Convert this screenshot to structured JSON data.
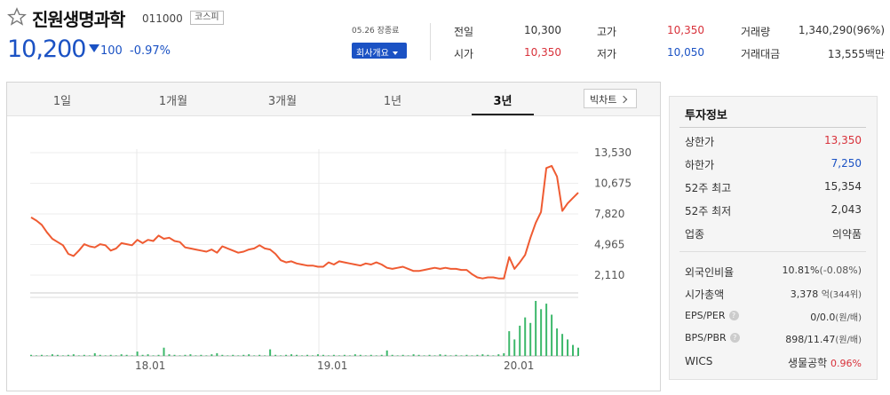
{
  "stock": {
    "name": "진원생명과학",
    "code": "011000",
    "market": "코스피",
    "price": "10,200",
    "change": "100",
    "change_pct": "-0.97%",
    "date_text": "05.26 장종료",
    "company_btn": "회사개요"
  },
  "quote": {
    "prev_close_label": "전일",
    "prev_close": "10,300",
    "high_label": "고가",
    "high": "10,350",
    "volume_label": "거래량",
    "volume": "1,340,290(96%)",
    "open_label": "시가",
    "open": "10,350",
    "low_label": "저가",
    "low": "10,050",
    "amount_label": "거래대금",
    "amount": "13,555백만"
  },
  "tabs": [
    "1일",
    "1개월",
    "3개월",
    "1년",
    "3년"
  ],
  "active_tab": "3년",
  "big_chart_btn": "빅차트",
  "chart_data": {
    "type": "line",
    "period": "3년",
    "y_ticks": [
      "13,530",
      "10,675",
      "7,820",
      "4,965",
      "2,110"
    ],
    "x_ticks": [
      "18.01",
      "19.01",
      "20.01"
    ],
    "ylim": [
      2110,
      13530
    ],
    "grid": true,
    "price_series": [
      7500,
      7200,
      6800,
      6100,
      5500,
      5200,
      4900,
      4100,
      3900,
      4400,
      5000,
      4800,
      4700,
      5000,
      4900,
      4400,
      4600,
      5100,
      5000,
      4900,
      5400,
      5100,
      5400,
      5300,
      5800,
      5500,
      5600,
      5300,
      5200,
      4700,
      4600,
      4500,
      4400,
      4300,
      4500,
      4200,
      4800,
      4600,
      4400,
      4200,
      4300,
      4500,
      4600,
      4900,
      4600,
      4500,
      4100,
      3500,
      3300,
      3400,
      3200,
      3100,
      3000,
      3000,
      2900,
      2900,
      3300,
      3100,
      3400,
      3300,
      3200,
      3100,
      3000,
      3200,
      3100,
      3300,
      3100,
      2800,
      2700,
      2800,
      2900,
      2700,
      2500,
      2500,
      2600,
      2700,
      2800,
      2700,
      2800,
      2700,
      2700,
      2600,
      2600,
      2200,
      1900,
      1800,
      1900,
      1900,
      1800,
      1800,
      3800,
      2700,
      3300,
      4000,
      5600,
      7000,
      8000,
      12100,
      12300,
      11300,
      8100,
      8800,
      9300,
      9800
    ],
    "volume_series": [
      0.02,
      0.01,
      0.02,
      0.01,
      0.03,
      0.02,
      0.01,
      0.02,
      0.03,
      0.01,
      0.02,
      0.01,
      0.05,
      0.02,
      0.01,
      0.02,
      0.01,
      0.03,
      0.02,
      0.01,
      0.08,
      0.02,
      0.03,
      0.01,
      0.02,
      0.15,
      0.03,
      0.02,
      0.01,
      0.02,
      0.03,
      0.01,
      0.02,
      0.01,
      0.03,
      0.05,
      0.02,
      0.01,
      0.02,
      0.01,
      0.02,
      0.03,
      0.01,
      0.02,
      0.01,
      0.12,
      0.02,
      0.01,
      0.02,
      0.03,
      0.02,
      0.01,
      0.02,
      0.01,
      0.03,
      0.02,
      0.01,
      0.02,
      0.01,
      0.02,
      0.01,
      0.03,
      0.02,
      0.01,
      0.02,
      0.01,
      0.02,
      0.1,
      0.02,
      0.01,
      0.02,
      0.01,
      0.03,
      0.02,
      0.01,
      0.02,
      0.01,
      0.03,
      0.02,
      0.01,
      0.02,
      0.01,
      0.02,
      0.01,
      0.02,
      0.03,
      0.02,
      0.01,
      0.03,
      0.05,
      0.45,
      0.3,
      0.55,
      0.7,
      0.6,
      1.0,
      0.85,
      0.95,
      0.75,
      0.5,
      0.4,
      0.3,
      0.2,
      0.15
    ]
  },
  "invest": {
    "title": "투자정보",
    "rows_a": [
      {
        "label": "상한가",
        "value": "13,350",
        "color": "red"
      },
      {
        "label": "하한가",
        "value": "7,250",
        "color": "blue"
      },
      {
        "label": "52주 최고",
        "value": "15,354",
        "color": ""
      },
      {
        "label": "52주 최저",
        "value": "2,043",
        "color": ""
      },
      {
        "label": "업종",
        "value": "의약품",
        "color": ""
      }
    ],
    "foreign_label": "외국인비율",
    "foreign_value": "10.81%",
    "foreign_change": "(-0.08%)",
    "mktcap_label": "시가총액",
    "mktcap_value": "3,378",
    "mktcap_unit": "억(344위)",
    "eps_label": "EPS/PER",
    "eps_value": "0/0.0",
    "eps_unit": "(원/배)",
    "bps_label": "BPS/PBR",
    "bps_value": "898/11.47",
    "bps_unit": "(원/배)",
    "wics_label": "WICS",
    "wics_value": "생물공학",
    "wics_change": "0.96%"
  },
  "colors": {
    "red": "#d8313a",
    "blue": "#1b52c4",
    "line": "#ef5b32",
    "volume": "#3db86b"
  }
}
